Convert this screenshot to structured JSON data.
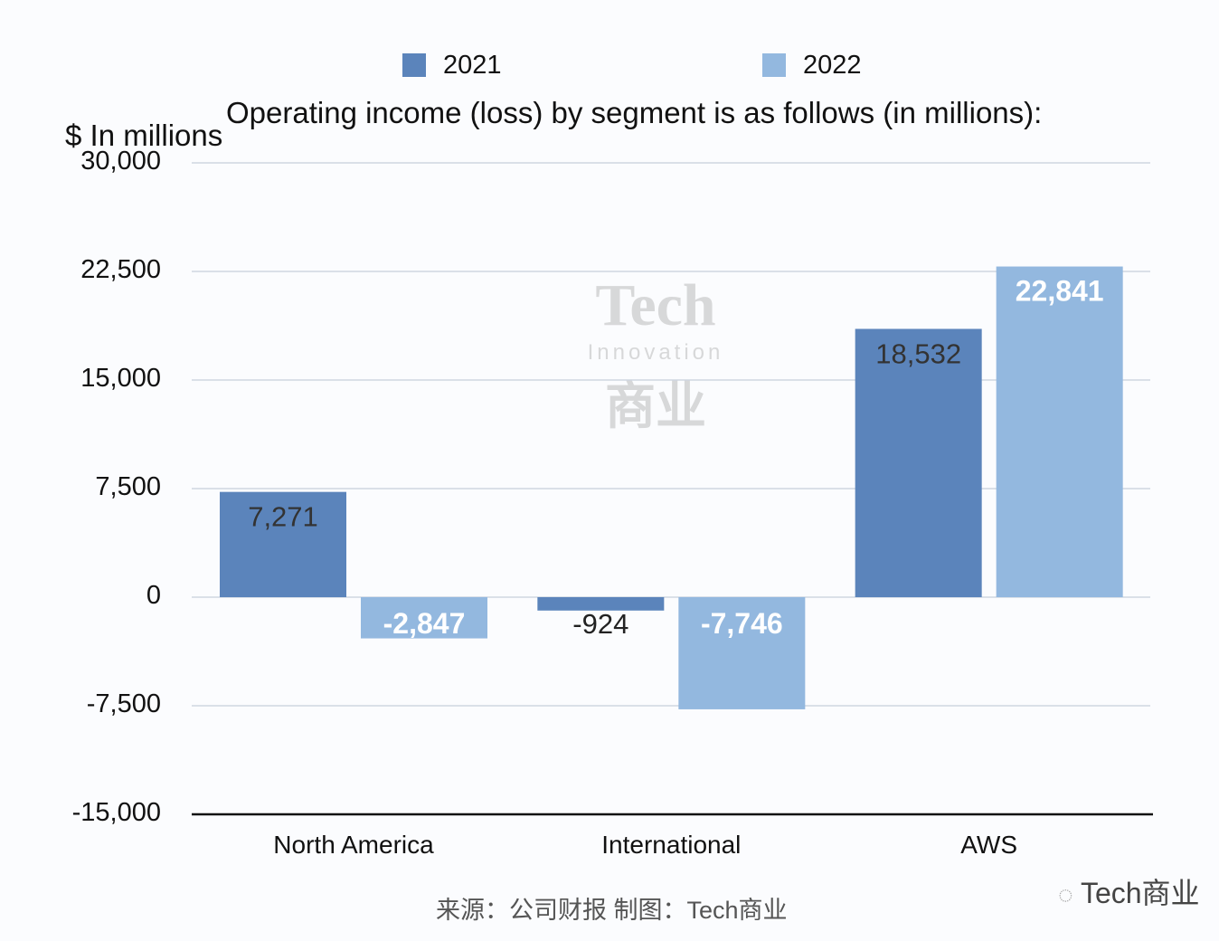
{
  "chart_data": {
    "type": "bar",
    "title": "Operating income (loss) by segment is as follows (in millions):",
    "ylabel": "$ In millions",
    "xlabel": "",
    "categories": [
      "North America",
      "International",
      "AWS"
    ],
    "series": [
      {
        "name": "2021",
        "color": "#5b84bb",
        "values": [
          7271,
          -924,
          18532
        ],
        "labels": [
          "7,271",
          "-924",
          "18,532"
        ]
      },
      {
        "name": "2022",
        "color": "#93b8df",
        "values": [
          -2847,
          -7746,
          22841
        ],
        "labels": [
          "-2,847",
          "-7,746",
          "22,841"
        ]
      }
    ],
    "ylim": [
      -15000,
      30000
    ],
    "yticks": [
      30000,
      22500,
      15000,
      7500,
      0,
      -7500,
      -15000
    ],
    "ytick_labels": [
      "30,000",
      "22,500",
      "15,000",
      "7,500",
      "0",
      "-7,500",
      "-15,000"
    ],
    "grid": true,
    "legend_position": "top"
  },
  "source": "来源：公司财报 制图：Tech商业",
  "brand": "Tech商业",
  "watermark": {
    "line1": "Tech",
    "line2": "Innovation",
    "line3": "商业"
  }
}
